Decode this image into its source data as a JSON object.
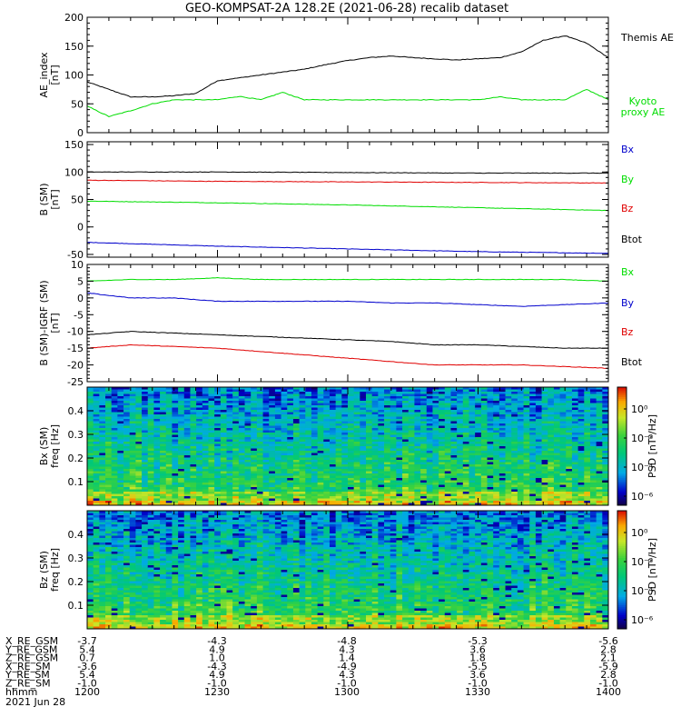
{
  "title": "GEO-KOMPSAT-2A 128.2E (2021-06-28) recalib dataset",
  "colors": {
    "black": "#000000",
    "red": "#e00000",
    "green": "#00dd00",
    "blue": "#0000cc"
  },
  "chart_data": [
    {
      "type": "line",
      "ylabel_lines": [
        "AE_index",
        "[nT]"
      ],
      "ylim": [
        0,
        200
      ],
      "yticks": [
        0,
        50,
        100,
        150,
        200
      ],
      "legend_placement": "right",
      "x": [
        "1200",
        "1205",
        "1210",
        "1215",
        "1220",
        "1225",
        "1230",
        "1235",
        "1240",
        "1245",
        "1250",
        "1255",
        "1300",
        "1305",
        "1310",
        "1315",
        "1320",
        "1325",
        "1330",
        "1335",
        "1340",
        "1345",
        "1350",
        "1355",
        "1400"
      ],
      "series": [
        {
          "name": "Themis AE",
          "color": "#000000",
          "values": [
            88,
            75,
            62,
            62,
            64,
            68,
            90,
            95,
            100,
            105,
            110,
            118,
            125,
            130,
            133,
            130,
            128,
            126,
            128,
            130,
            140,
            160,
            168,
            155,
            130
          ]
        },
        {
          "name": "Kyoto proxy AE",
          "color": "#00dd00",
          "values": [
            46,
            28,
            38,
            50,
            57,
            57,
            57,
            63,
            57,
            70,
            57,
            57,
            57,
            57,
            57,
            57,
            57,
            57,
            57,
            62,
            57,
            57,
            57,
            75,
            57
          ]
        }
      ]
    },
    {
      "type": "line",
      "ylabel_lines": [
        "B (SM)",
        "[nT]"
      ],
      "ylim": [
        -55,
        155
      ],
      "yticks": [
        -50,
        0,
        50,
        100,
        150
      ],
      "legend_placement": "right",
      "x": [
        "1200",
        "1230",
        "1300",
        "1330",
        "1400"
      ],
      "series": [
        {
          "name": "Bx",
          "color": "#0000cc",
          "values": [
            -28,
            -35,
            -40,
            -45,
            -48
          ]
        },
        {
          "name": "By",
          "color": "#00dd00",
          "values": [
            47,
            44,
            40,
            35,
            30
          ]
        },
        {
          "name": "Bz",
          "color": "#e00000",
          "values": [
            85,
            83,
            82,
            81,
            80
          ]
        },
        {
          "name": "Btot",
          "color": "#000000",
          "values": [
            100,
            100,
            99,
            98,
            98
          ]
        }
      ]
    },
    {
      "type": "line",
      "ylabel_lines": [
        "B (SM)-IGRF (SM)",
        "[nT]"
      ],
      "ylim": [
        -25,
        10
      ],
      "yticks": [
        -25,
        -20,
        -15,
        -10,
        -5,
        0,
        5,
        10
      ],
      "legend_placement": "right",
      "x": [
        "1200",
        "1210",
        "1220",
        "1230",
        "1240",
        "1250",
        "1300",
        "1310",
        "1320",
        "1330",
        "1340",
        "1350",
        "1400"
      ],
      "series": [
        {
          "name": "Bx",
          "color": "#00dd00",
          "values": [
            5,
            5.5,
            5.5,
            6,
            5.5,
            5.5,
            5.5,
            5.5,
            5.5,
            5.5,
            5.5,
            5.5,
            5
          ]
        },
        {
          "name": "By",
          "color": "#0000cc",
          "values": [
            1.5,
            0,
            0,
            -1,
            -1,
            -1,
            -1,
            -1.5,
            -1.5,
            -2,
            -2.5,
            -2,
            -1.5
          ]
        },
        {
          "name": "Bz",
          "color": "#e00000",
          "values": [
            -15,
            -14,
            -14.5,
            -15,
            -16,
            -17,
            -18,
            -19,
            -20,
            -20,
            -20,
            -20.5,
            -21
          ]
        },
        {
          "name": "Btot",
          "color": "#000000",
          "values": [
            -11,
            -10,
            -10.5,
            -11,
            -11.5,
            -12,
            -12.5,
            -13,
            -14,
            -14,
            -14.5,
            -15,
            -15
          ]
        }
      ]
    },
    {
      "type": "heatmap",
      "ylabel_lines": [
        "Bx (SM)",
        "freq [Hz]"
      ],
      "ylim": [
        0,
        0.5
      ],
      "yticks": [
        0.1,
        0.2,
        0.3,
        0.4
      ],
      "colorbar_label": "PSD [nT²/Hz]",
      "colorbar_ticks": [
        "10⁰",
        "10⁻²",
        "10⁻⁴",
        "10⁻⁶"
      ]
    },
    {
      "type": "heatmap",
      "ylabel_lines": [
        "Bz (SM)",
        "freq [Hz]"
      ],
      "ylim": [
        0,
        0.5
      ],
      "yticks": [
        0.1,
        0.2,
        0.3,
        0.4
      ],
      "colorbar_label": "PSD [nT²/Hz]",
      "colorbar_ticks": [
        "10⁰",
        "10⁻²",
        "10⁻⁴",
        "10⁻⁶"
      ]
    }
  ],
  "ephemeris": {
    "rows": [
      {
        "label": "X_RE_GSM",
        "values": [
          "-3.7",
          "-4.3",
          "-4.8",
          "-5.3",
          "-5.6"
        ]
      },
      {
        "label": "Y_RE_GSM",
        "values": [
          "5.4",
          "4.9",
          "4.3",
          "3.6",
          "2.8"
        ]
      },
      {
        "label": "Z_RE_GSM",
        "values": [
          "0.7",
          "1.0",
          "1.4",
          "1.8",
          "2.1"
        ]
      },
      {
        "label": "X_RE_SM",
        "values": [
          "-3.6",
          "-4.3",
          "-4.9",
          "-5.5",
          "-5.9"
        ]
      },
      {
        "label": "Y_RE_SM",
        "values": [
          "5.4",
          "4.9",
          "4.3",
          "3.6",
          "2.8"
        ]
      },
      {
        "label": "Z_RE_SM",
        "values": [
          "-1.0",
          "-1.0",
          "-1.0",
          "-1.0",
          "-1.0"
        ]
      },
      {
        "label": "hhmm",
        "values": [
          "1200",
          "1230",
          "1300",
          "1330",
          "1400"
        ]
      }
    ],
    "date": "2021 Jun 28"
  }
}
